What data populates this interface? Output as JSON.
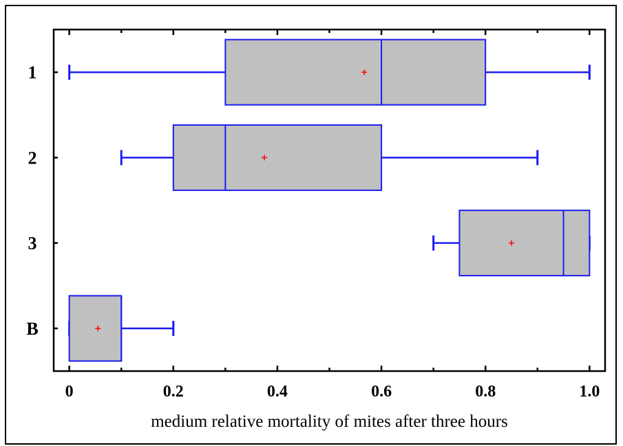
{
  "chart_data": {
    "type": "boxplot",
    "orientation": "horizontal",
    "xlabel": "medium relative mortality of mites after three hours",
    "xlim": [
      -0.03,
      1.03
    ],
    "x_ticks": [
      0,
      0.2,
      0.4,
      0.6,
      0.8,
      1.0
    ],
    "x_tick_labels": [
      "0",
      "0.2",
      "0.4",
      "0.6",
      "0.8",
      "1.0"
    ],
    "categories": [
      "1",
      "2",
      "3",
      "B"
    ],
    "boxes": [
      {
        "category": "1",
        "min": 0.0,
        "q1": 0.3,
        "median": 0.6,
        "q3": 0.8,
        "max": 1.0,
        "mean": 0.567
      },
      {
        "category": "2",
        "min": 0.1,
        "q1": 0.2,
        "median": 0.3,
        "q3": 0.6,
        "max": 0.9,
        "mean": 0.375
      },
      {
        "category": "3",
        "min": 0.7,
        "q1": 0.75,
        "median": 0.95,
        "q3": 1.0,
        "max": 1.0,
        "mean": 0.85
      },
      {
        "category": "B",
        "min": 0.0,
        "q1": 0.0,
        "median": 0.1,
        "q3": 0.1,
        "max": 0.2,
        "mean": 0.055
      }
    ],
    "colors": {
      "box_fill": "#c0c0c0",
      "box_stroke": "#1c1cf0",
      "mean_marker": "#ff0000",
      "axis": "#000000"
    },
    "grid": false,
    "legend": "none"
  }
}
